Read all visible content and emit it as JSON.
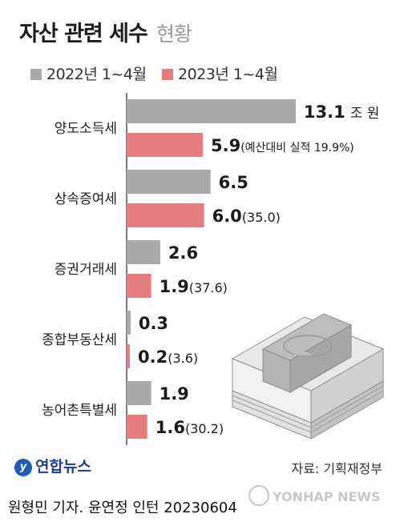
{
  "title": {
    "main": "자산 관련 세수",
    "sub": "현황"
  },
  "colors": {
    "series_2022": "#a9a9a9",
    "series_2023": "#e47c80",
    "axis": "#555555"
  },
  "chart_data": {
    "type": "bar",
    "orientation": "horizontal",
    "categories": [
      "양도소득세",
      "상속증여세",
      "증권거래세",
      "종합부동산세",
      "농어촌특별세"
    ],
    "series": [
      {
        "name": "2022년 1~4월",
        "values": [
          13.1,
          6.5,
          2.6,
          0.3,
          1.9
        ]
      },
      {
        "name": "2023년 1~4월",
        "values": [
          5.9,
          6.0,
          1.9,
          0.2,
          1.6
        ]
      }
    ],
    "value_labels_2022": [
      "13.1",
      "6.5",
      "2.6",
      "0.3",
      "1.9"
    ],
    "unit_label": "조 원",
    "value_labels_2023": [
      "5.9",
      "6.0",
      "1.9",
      "0.2",
      "1.6"
    ],
    "notes_2023": [
      "(예산대비 실적 19.9%)",
      "(35.0)",
      "(37.6)",
      "(3.6)",
      "(30.2)"
    ]
  },
  "illustration": {
    "icon": "money-stack-icon"
  },
  "brand": {
    "logo_glyph": "y",
    "name": "연합뉴스"
  },
  "source": "자료: 기획재정부",
  "credit": "원형민 기자. 윤연정 인턴  20230604",
  "watermark": "YONHAP NEWS"
}
